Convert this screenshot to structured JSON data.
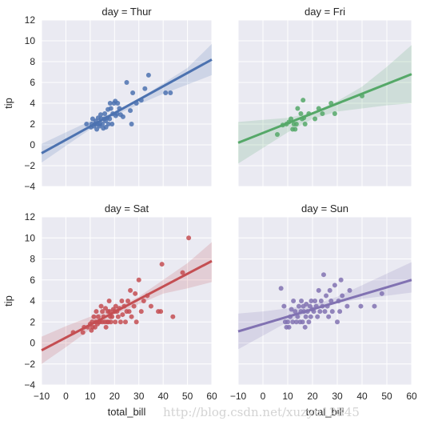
{
  "watermark": "http://blog.csdn.net/xuzyu12345",
  "chart_data": {
    "type": "scatter",
    "title": "",
    "xlabel": "total_bill",
    "ylabel": "tip",
    "xlim": [
      -10,
      60
    ],
    "ylim": [
      -4,
      12
    ],
    "xticks": [
      -10,
      0,
      10,
      20,
      30,
      40,
      50,
      60
    ],
    "yticks": [
      -4,
      -2,
      0,
      2,
      4,
      6,
      8,
      10,
      12
    ],
    "grid": true,
    "background": "#eaeaf2",
    "facets": [
      {
        "title": "day = Thur",
        "color": "#4c72b0",
        "points": [
          [
            8.5,
            2.0
          ],
          [
            10.3,
            1.7
          ],
          [
            10.6,
            2.0
          ],
          [
            11.0,
            2.5
          ],
          [
            11.5,
            1.8
          ],
          [
            12.0,
            2.0
          ],
          [
            12.3,
            2.3
          ],
          [
            12.7,
            1.5
          ],
          [
            13.0,
            2.0
          ],
          [
            13.3,
            2.6
          ],
          [
            13.8,
            1.8
          ],
          [
            14.0,
            2.0
          ],
          [
            14.3,
            2.9
          ],
          [
            14.5,
            2.5
          ],
          [
            15.0,
            2.0
          ],
          [
            15.4,
            1.6
          ],
          [
            15.8,
            2.5
          ],
          [
            16.0,
            3.0
          ],
          [
            16.3,
            2.3
          ],
          [
            16.5,
            1.7
          ],
          [
            17.0,
            2.6
          ],
          [
            17.3,
            3.4
          ],
          [
            17.5,
            2.0
          ],
          [
            18.0,
            2.5
          ],
          [
            18.2,
            4.0
          ],
          [
            18.5,
            3.5
          ],
          [
            19.0,
            2.0
          ],
          [
            19.3,
            3.0
          ],
          [
            19.8,
            4.0
          ],
          [
            20.3,
            4.2
          ],
          [
            20.5,
            2.8
          ],
          [
            21.0,
            3.0
          ],
          [
            21.3,
            4.0
          ],
          [
            22.0,
            3.5
          ],
          [
            22.5,
            2.9
          ],
          [
            23.5,
            2.7
          ],
          [
            25.0,
            6.0
          ],
          [
            26.5,
            3.3
          ],
          [
            27.0,
            2.0
          ],
          [
            27.5,
            5.0
          ],
          [
            29.0,
            4.0
          ],
          [
            31.0,
            4.3
          ],
          [
            32.5,
            5.4
          ],
          [
            34.0,
            6.7
          ],
          [
            41.0,
            5.0
          ],
          [
            43.0,
            5.0
          ]
        ],
        "fit": {
          "x": [
            -10,
            60
          ],
          "y": [
            -0.8,
            8.2
          ]
        },
        "ci": {
          "x": [
            -10,
            0,
            10,
            20,
            30,
            40,
            50,
            60
          ],
          "lower": [
            -1.7,
            -0.1,
            1.5,
            2.8,
            3.9,
            4.9,
            5.8,
            6.7
          ],
          "upper": [
            0.1,
            1.2,
            2.3,
            3.1,
            4.4,
            5.9,
            7.4,
            9.7
          ]
        }
      },
      {
        "title": "day = Fri",
        "color": "#55a868",
        "points": [
          [
            5.8,
            1.0
          ],
          [
            8.0,
            1.9
          ],
          [
            9.5,
            2.0
          ],
          [
            10.5,
            2.2
          ],
          [
            11.3,
            2.5
          ],
          [
            12.0,
            1.5
          ],
          [
            12.5,
            2.0
          ],
          [
            13.0,
            1.5
          ],
          [
            13.5,
            2.0
          ],
          [
            14.0,
            3.5
          ],
          [
            15.3,
            3.0
          ],
          [
            15.8,
            2.5
          ],
          [
            16.2,
            4.3
          ],
          [
            16.5,
            2.6
          ],
          [
            17.0,
            2.0
          ],
          [
            18.5,
            3.0
          ],
          [
            21.0,
            2.5
          ],
          [
            22.5,
            3.5
          ],
          [
            24.0,
            3.0
          ],
          [
            27.5,
            4.0
          ],
          [
            29.0,
            3.0
          ],
          [
            40.0,
            4.7
          ]
        ],
        "fit": {
          "x": [
            -10,
            60
          ],
          "y": [
            0.2,
            6.8
          ]
        },
        "ci": {
          "x": [
            -10,
            0,
            10,
            20,
            30,
            40,
            50,
            60
          ],
          "lower": [
            -1.8,
            -0.3,
            1.2,
            2.5,
            3.2,
            3.5,
            3.8,
            4.0
          ],
          "upper": [
            2.2,
            2.4,
            2.6,
            3.1,
            4.2,
            5.6,
            7.5,
            9.6
          ]
        }
      },
      {
        "title": "day = Sat",
        "color": "#c44e52",
        "points": [
          [
            3.0,
            1.0
          ],
          [
            7.0,
            1.0
          ],
          [
            7.5,
            1.5
          ],
          [
            9.0,
            1.5
          ],
          [
            10.0,
            1.8
          ],
          [
            10.5,
            1.2
          ],
          [
            10.8,
            2.0
          ],
          [
            11.0,
            1.5
          ],
          [
            11.5,
            2.5
          ],
          [
            12.0,
            1.5
          ],
          [
            12.3,
            2.0
          ],
          [
            12.5,
            3.0
          ],
          [
            13.0,
            1.8
          ],
          [
            13.3,
            2.5
          ],
          [
            13.5,
            2.0
          ],
          [
            14.0,
            2.0
          ],
          [
            14.5,
            3.5
          ],
          [
            15.0,
            2.0
          ],
          [
            15.0,
            3.0
          ],
          [
            15.5,
            2.5
          ],
          [
            16.0,
            2.0
          ],
          [
            16.3,
            3.3
          ],
          [
            16.5,
            1.5
          ],
          [
            17.0,
            2.0
          ],
          [
            17.3,
            3.0
          ],
          [
            17.5,
            2.0
          ],
          [
            17.8,
            4.0
          ],
          [
            18.0,
            3.0
          ],
          [
            18.3,
            2.5
          ],
          [
            18.5,
            2.0
          ],
          [
            19.0,
            2.5
          ],
          [
            19.5,
            3.2
          ],
          [
            20.0,
            3.0
          ],
          [
            20.3,
            2.0
          ],
          [
            20.5,
            3.5
          ],
          [
            21.0,
            3.0
          ],
          [
            21.5,
            2.5
          ],
          [
            22.0,
            3.3
          ],
          [
            22.5,
            2.0
          ],
          [
            23.0,
            4.0
          ],
          [
            23.3,
            2.7
          ],
          [
            24.0,
            3.5
          ],
          [
            24.5,
            2.0
          ],
          [
            25.0,
            3.0
          ],
          [
            25.5,
            4.0
          ],
          [
            26.0,
            3.0
          ],
          [
            26.5,
            5.0
          ],
          [
            27.0,
            2.5
          ],
          [
            28.0,
            3.5
          ],
          [
            28.5,
            4.7
          ],
          [
            29.0,
            2.0
          ],
          [
            30.0,
            6.0
          ],
          [
            31.0,
            3.0
          ],
          [
            32.0,
            4.0
          ],
          [
            33.5,
            4.5
          ],
          [
            35.0,
            3.5
          ],
          [
            38.0,
            3.0
          ],
          [
            39.0,
            3.0
          ],
          [
            39.5,
            7.5
          ],
          [
            44.0,
            2.5
          ],
          [
            48.0,
            6.7
          ],
          [
            50.5,
            10.0
          ]
        ],
        "fit": {
          "x": [
            -10,
            60
          ],
          "y": [
            -0.7,
            7.8
          ]
        },
        "ci": {
          "x": [
            -10,
            0,
            10,
            20,
            30,
            40,
            50,
            60
          ],
          "lower": [
            -2.0,
            -0.4,
            1.3,
            2.7,
            3.7,
            4.7,
            5.2,
            5.8
          ],
          "upper": [
            0.6,
            1.6,
            2.5,
            3.3,
            4.4,
            6.0,
            7.6,
            9.6
          ]
        }
      },
      {
        "title": "day = Sun",
        "color": "#8172b2",
        "points": [
          [
            7.3,
            5.2
          ],
          [
            8.5,
            3.5
          ],
          [
            9.0,
            2.0
          ],
          [
            9.5,
            1.5
          ],
          [
            10.0,
            2.0
          ],
          [
            10.5,
            1.5
          ],
          [
            11.0,
            2.5
          ],
          [
            11.5,
            3.2
          ],
          [
            12.0,
            2.0
          ],
          [
            12.3,
            4.0
          ],
          [
            13.0,
            3.0
          ],
          [
            13.5,
            2.0
          ],
          [
            14.0,
            2.5
          ],
          [
            14.5,
            3.5
          ],
          [
            15.0,
            2.0
          ],
          [
            15.3,
            3.0
          ],
          [
            15.5,
            4.0
          ],
          [
            16.0,
            2.0
          ],
          [
            16.3,
            3.5
          ],
          [
            16.5,
            3.0
          ],
          [
            17.0,
            1.5
          ],
          [
            17.3,
            2.5
          ],
          [
            17.5,
            3.7
          ],
          [
            18.0,
            3.0
          ],
          [
            18.5,
            2.0
          ],
          [
            19.0,
            3.5
          ],
          [
            19.3,
            2.5
          ],
          [
            19.5,
            4.0
          ],
          [
            20.0,
            3.2
          ],
          [
            20.5,
            3.0
          ],
          [
            21.0,
            4.0
          ],
          [
            21.5,
            3.5
          ],
          [
            22.0,
            2.5
          ],
          [
            22.5,
            5.0
          ],
          [
            23.0,
            3.0
          ],
          [
            23.5,
            4.0
          ],
          [
            24.0,
            3.5
          ],
          [
            24.5,
            6.5
          ],
          [
            25.0,
            3.0
          ],
          [
            25.5,
            4.5
          ],
          [
            26.0,
            3.5
          ],
          [
            26.5,
            2.5
          ],
          [
            27.0,
            5.0
          ],
          [
            27.5,
            4.0
          ],
          [
            28.0,
            3.0
          ],
          [
            29.0,
            5.5
          ],
          [
            30.0,
            2.0
          ],
          [
            30.5,
            4.0
          ],
          [
            31.0,
            3.0
          ],
          [
            31.5,
            6.0
          ],
          [
            32.0,
            4.5
          ],
          [
            34.0,
            3.5
          ],
          [
            35.0,
            5.0
          ],
          [
            39.5,
            3.5
          ],
          [
            45.0,
            3.5
          ],
          [
            48.0,
            4.7
          ]
        ],
        "fit": {
          "x": [
            -10,
            60
          ],
          "y": [
            1.1,
            6.0
          ]
        },
        "ci": {
          "x": [
            -10,
            0,
            10,
            20,
            30,
            40,
            50,
            60
          ],
          "lower": [
            -0.6,
            0.7,
            2.0,
            3.1,
            3.8,
            4.2,
            4.5,
            4.8
          ],
          "upper": [
            2.8,
            3.0,
            3.3,
            3.6,
            4.4,
            5.5,
            6.6,
            7.7
          ]
        }
      }
    ]
  }
}
